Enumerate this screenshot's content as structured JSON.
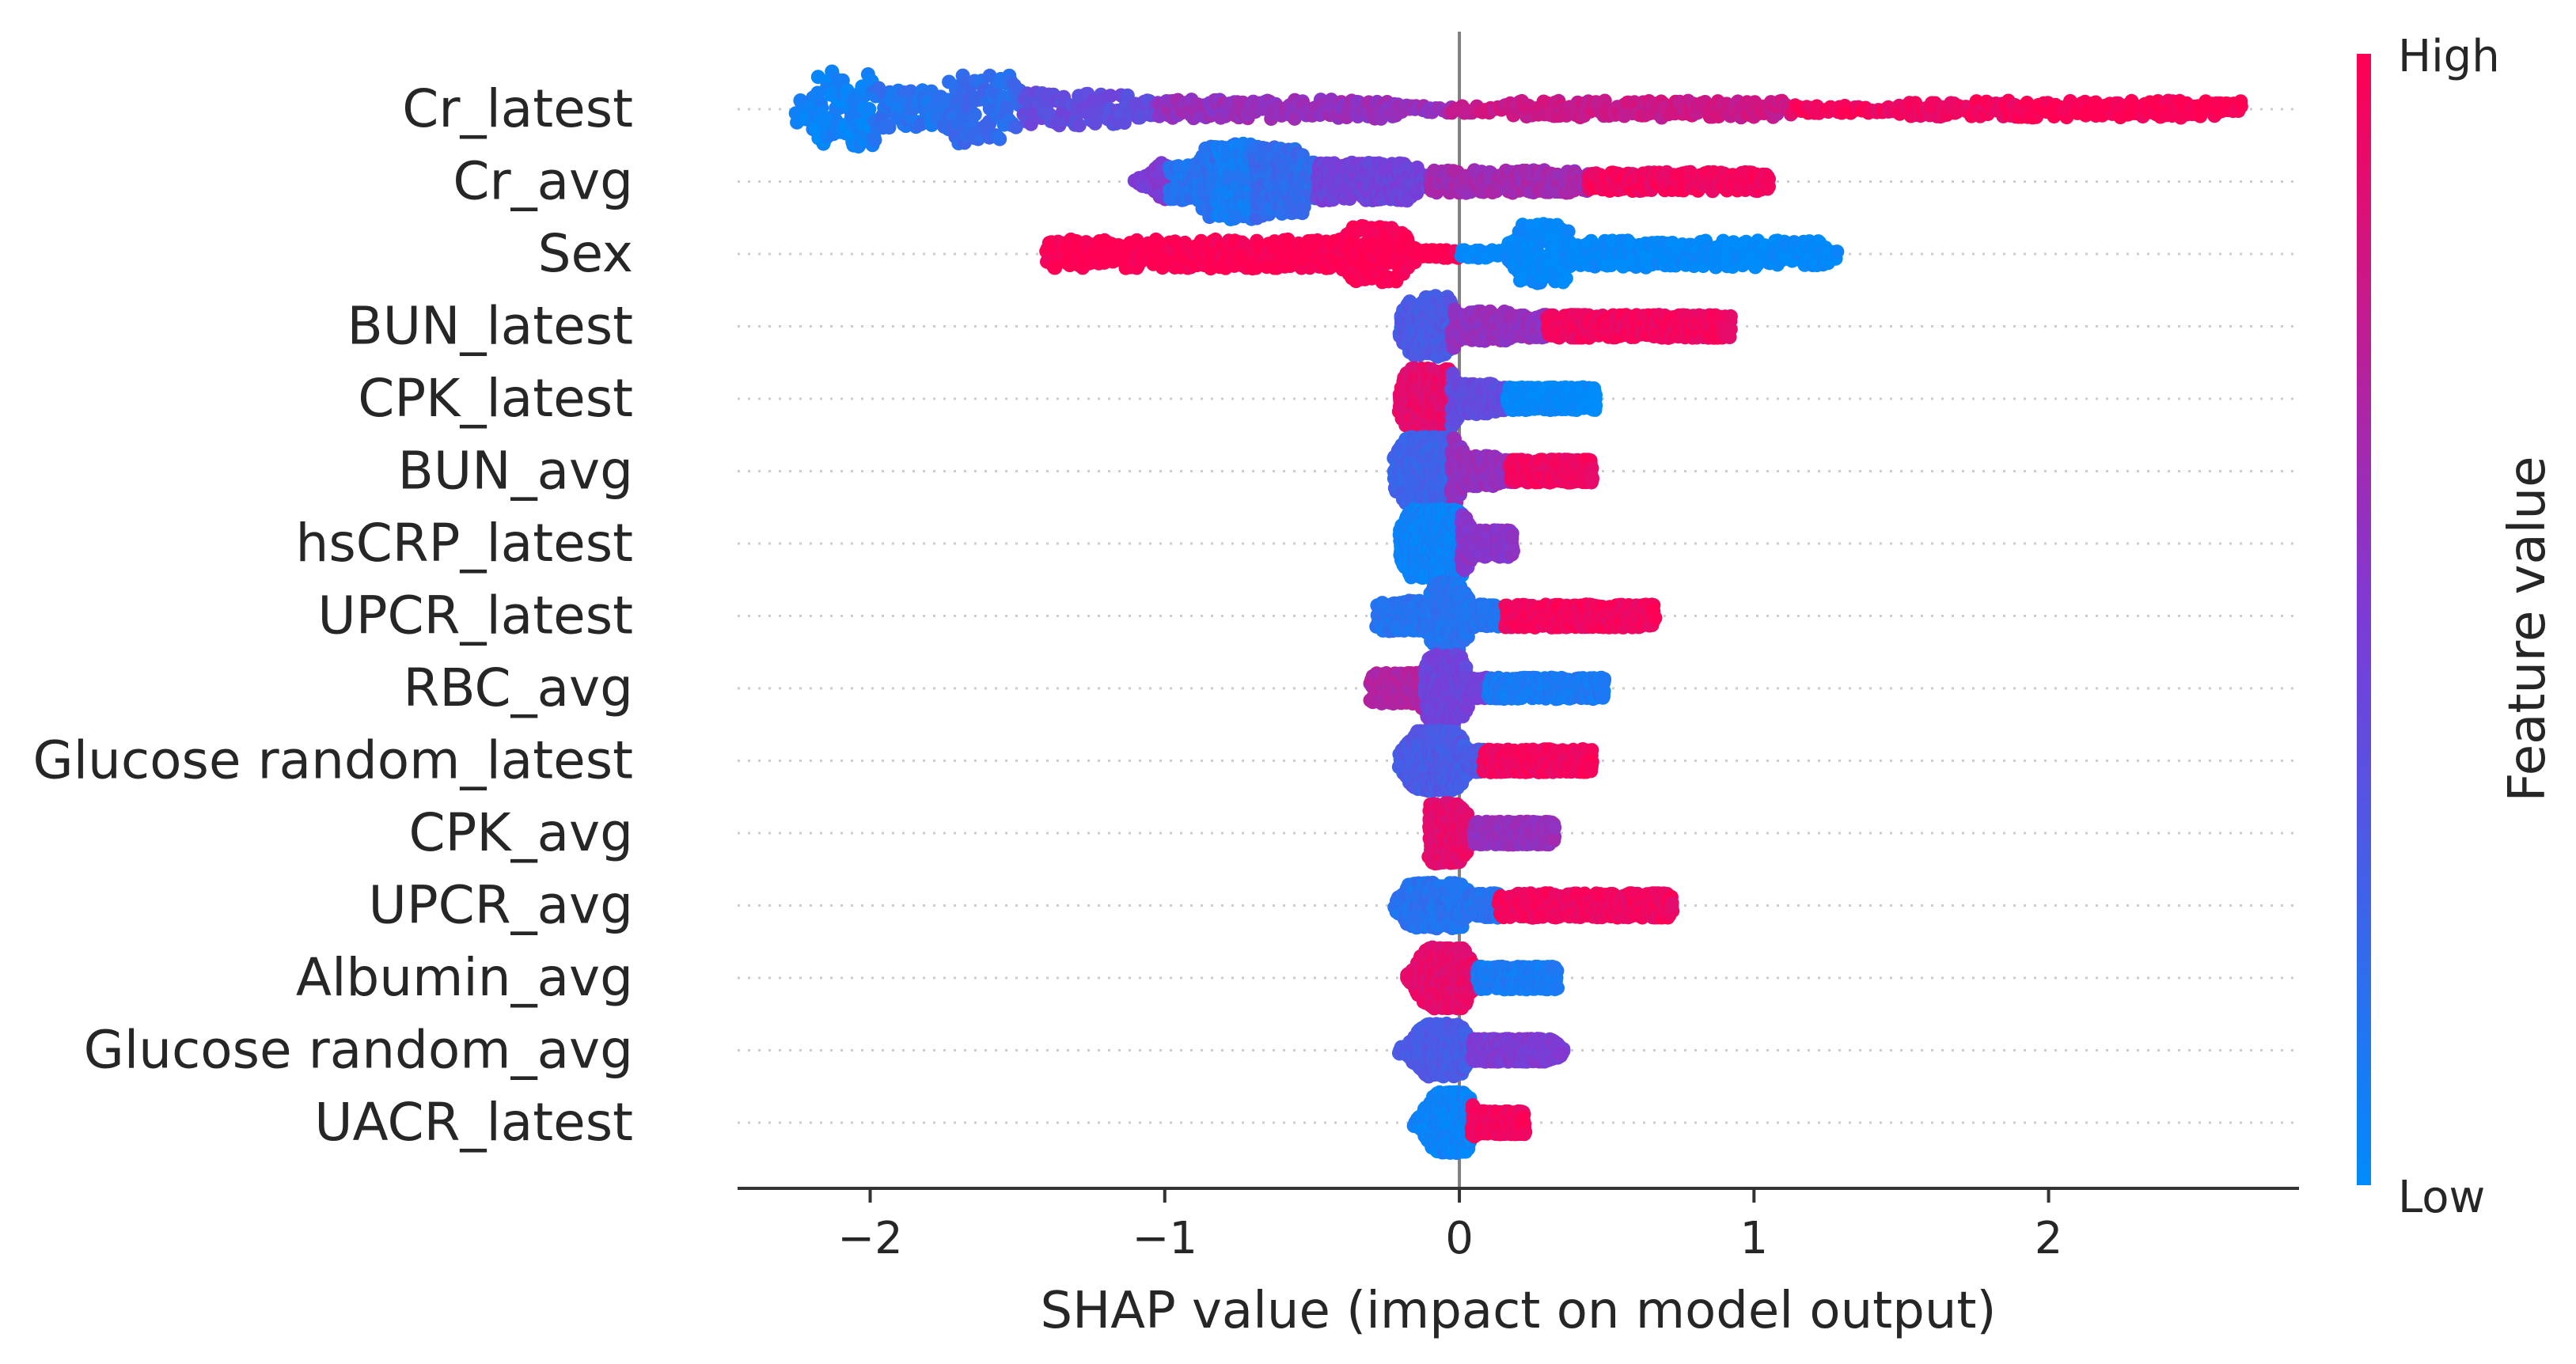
{
  "chart_data": {
    "type": "scatter",
    "subtype": "shap-beeswarm-summary",
    "xlabel": "SHAP value (impact on model output)",
    "xlim": [
      -2.45,
      2.85
    ],
    "xticks": [
      -2,
      -1,
      0,
      1,
      2
    ],
    "xtick_labels": [
      "−2",
      "−1",
      "0",
      "1",
      "2"
    ],
    "colorbar": {
      "label": "Feature value",
      "high": "High",
      "low": "Low",
      "high_color": "#ff0052",
      "low_color": "#008bfb"
    },
    "zero_line_color": "#808080",
    "features": [
      {
        "name": "Cr_latest",
        "range": [
          -2.25,
          2.65
        ],
        "clusters": [
          {
            "x": -2.2,
            "y": 0.1,
            "w": 0.15,
            "h": 0.35,
            "c": 0.05
          },
          {
            "x": -2.08,
            "y": 0.3,
            "w": 0.15,
            "h": 1.0,
            "c": 0.05
          },
          {
            "x": -1.9,
            "y": 0.0,
            "w": 0.2,
            "h": 0.5,
            "c": 0.15
          },
          {
            "x": -1.62,
            "y": 0.3,
            "w": 0.18,
            "h": 0.9,
            "c": 0.2
          },
          {
            "x": -1.35,
            "y": 0.0,
            "w": 0.4,
            "h": 0.45,
            "c": 0.4
          },
          {
            "x": -0.7,
            "y": 0.0,
            "w": 0.9,
            "h": 0.25,
            "c": 0.6
          },
          {
            "x": 0.65,
            "y": 0.0,
            "w": 0.9,
            "h": 0.22,
            "c": 0.8
          },
          {
            "x": 1.6,
            "y": 0.0,
            "w": 0.15,
            "h": 0.2,
            "c": 0.95
          },
          {
            "x": 2.2,
            "y": 0.0,
            "w": 0.9,
            "h": 0.22,
            "c": 1.0
          }
        ]
      },
      {
        "name": "Cr_avg",
        "range": [
          -1.1,
          1.05
        ],
        "clusters": [
          {
            "x": -1.08,
            "y": 0.0,
            "w": 0.05,
            "h": 0.15,
            "c": 0.5
          },
          {
            "x": -0.88,
            "y": 0.15,
            "w": 0.25,
            "h": 0.5,
            "c": 0.15
          },
          {
            "x": -0.77,
            "y": 0.2,
            "w": 0.15,
            "h": 1.0,
            "c": 0.1
          },
          {
            "x": -0.62,
            "y": 0.2,
            "w": 0.15,
            "h": 0.9,
            "c": 0.2
          },
          {
            "x": -0.35,
            "y": 0.0,
            "w": 0.35,
            "h": 0.5,
            "c": 0.45
          },
          {
            "x": 0.15,
            "y": 0.0,
            "w": 0.45,
            "h": 0.3,
            "c": 0.65
          },
          {
            "x": 0.72,
            "y": 0.0,
            "w": 0.6,
            "h": 0.25,
            "c": 0.95
          }
        ]
      },
      {
        "name": "Sex",
        "range": [
          -1.4,
          1.28
        ],
        "clusters": [
          {
            "x": -0.85,
            "y": 0.0,
            "w": 1.1,
            "h": 0.38,
            "c": 1.0
          },
          {
            "x": -0.28,
            "y": 0.0,
            "w": 0.15,
            "h": 0.75,
            "c": 1.0
          },
          {
            "x": 0.28,
            "y": 0.0,
            "w": 0.12,
            "h": 0.8,
            "c": 0.0
          },
          {
            "x": 0.75,
            "y": 0.0,
            "w": 0.95,
            "h": 0.35,
            "c": 0.0
          }
        ]
      },
      {
        "name": "BUN_latest",
        "range": [
          -0.2,
          0.92
        ],
        "clusters": [
          {
            "x": -0.1,
            "y": 0.1,
            "w": 0.1,
            "h": 0.8,
            "c": 0.3
          },
          {
            "x": 0.05,
            "y": 0.0,
            "w": 0.2,
            "h": 0.4,
            "c": 0.6
          },
          {
            "x": 0.55,
            "y": 0.0,
            "w": 0.75,
            "h": 0.3,
            "c": 0.95
          }
        ]
      },
      {
        "name": "CPK_latest",
        "range": [
          -0.2,
          0.46
        ],
        "clusters": [
          {
            "x": -0.1,
            "y": 0.0,
            "w": 0.12,
            "h": 0.8,
            "c": 0.9
          },
          {
            "x": 0.05,
            "y": 0.0,
            "w": 0.12,
            "h": 0.4,
            "c": 0.4
          },
          {
            "x": 0.28,
            "y": 0.0,
            "w": 0.35,
            "h": 0.3,
            "c": 0.0
          }
        ]
      },
      {
        "name": "BUN_avg",
        "range": [
          -0.22,
          0.45
        ],
        "clusters": [
          {
            "x": -0.1,
            "y": 0.0,
            "w": 0.15,
            "h": 0.9,
            "c": 0.25
          },
          {
            "x": 0.05,
            "y": 0.0,
            "w": 0.12,
            "h": 0.4,
            "c": 0.6
          },
          {
            "x": 0.3,
            "y": 0.0,
            "w": 0.3,
            "h": 0.3,
            "c": 0.95
          }
        ]
      },
      {
        "name": "hsCRP_latest",
        "range": [
          -0.2,
          0.18
        ],
        "clusters": [
          {
            "x": -0.08,
            "y": 0.0,
            "w": 0.15,
            "h": 0.9,
            "c": 0.05
          },
          {
            "x": 0.1,
            "y": 0.0,
            "w": 0.12,
            "h": 0.35,
            "c": 0.55
          }
        ]
      },
      {
        "name": "UPCR_latest",
        "range": [
          -0.28,
          0.66
        ],
        "clusters": [
          {
            "x": -0.15,
            "y": 0.0,
            "w": 0.2,
            "h": 0.4,
            "c": 0.15
          },
          {
            "x": -0.04,
            "y": 0.0,
            "w": 0.06,
            "h": 0.9,
            "c": 0.15
          },
          {
            "x": 0.35,
            "y": 0.0,
            "w": 0.6,
            "h": 0.3,
            "c": 0.95
          }
        ]
      },
      {
        "name": "RBC_avg",
        "range": [
          -0.3,
          0.49
        ],
        "clusters": [
          {
            "x": -0.18,
            "y": 0.0,
            "w": 0.2,
            "h": 0.4,
            "c": 0.7
          },
          {
            "x": -0.05,
            "y": 0.0,
            "w": 0.08,
            "h": 0.9,
            "c": 0.45
          },
          {
            "x": 0.25,
            "y": 0.0,
            "w": 0.45,
            "h": 0.28,
            "c": 0.1
          }
        ]
      },
      {
        "name": "Glucose random_latest",
        "range": [
          -0.2,
          0.45
        ],
        "clusters": [
          {
            "x": -0.08,
            "y": 0.0,
            "w": 0.12,
            "h": 0.8,
            "c": 0.3
          },
          {
            "x": 0.25,
            "y": 0.0,
            "w": 0.4,
            "h": 0.3,
            "c": 0.95
          }
        ]
      },
      {
        "name": "CPK_avg",
        "range": [
          -0.1,
          0.32
        ],
        "clusters": [
          {
            "x": -0.05,
            "y": 0.0,
            "w": 0.08,
            "h": 0.8,
            "c": 0.9
          },
          {
            "x": 0.15,
            "y": 0.0,
            "w": 0.3,
            "h": 0.3,
            "c": 0.6
          }
        ]
      },
      {
        "name": "UPCR_avg",
        "range": [
          -0.22,
          0.72
        ],
        "clusters": [
          {
            "x": -0.08,
            "y": 0.0,
            "w": 0.15,
            "h": 0.6,
            "c": 0.15
          },
          {
            "x": 0.35,
            "y": 0.0,
            "w": 0.7,
            "h": 0.32,
            "c": 0.95
          }
        ]
      },
      {
        "name": "Albumin_avg",
        "range": [
          -0.18,
          0.33
        ],
        "clusters": [
          {
            "x": -0.05,
            "y": 0.0,
            "w": 0.1,
            "h": 0.8,
            "c": 0.9
          },
          {
            "x": 0.18,
            "y": 0.0,
            "w": 0.28,
            "h": 0.3,
            "c": 0.1
          }
        ]
      },
      {
        "name": "Glucose random_avg",
        "range": [
          -0.2,
          0.35
        ],
        "clusters": [
          {
            "x": -0.06,
            "y": 0.0,
            "w": 0.1,
            "h": 0.7,
            "c": 0.3
          },
          {
            "x": 0.15,
            "y": 0.0,
            "w": 0.3,
            "h": 0.3,
            "c": 0.5
          }
        ]
      },
      {
        "name": "UACR_latest",
        "range": [
          -0.15,
          0.22
        ],
        "clusters": [
          {
            "x": -0.03,
            "y": 0.0,
            "w": 0.08,
            "h": 0.8,
            "c": 0.05
          },
          {
            "x": 0.12,
            "y": 0.0,
            "w": 0.2,
            "h": 0.3,
            "c": 0.95
          }
        ]
      }
    ]
  }
}
